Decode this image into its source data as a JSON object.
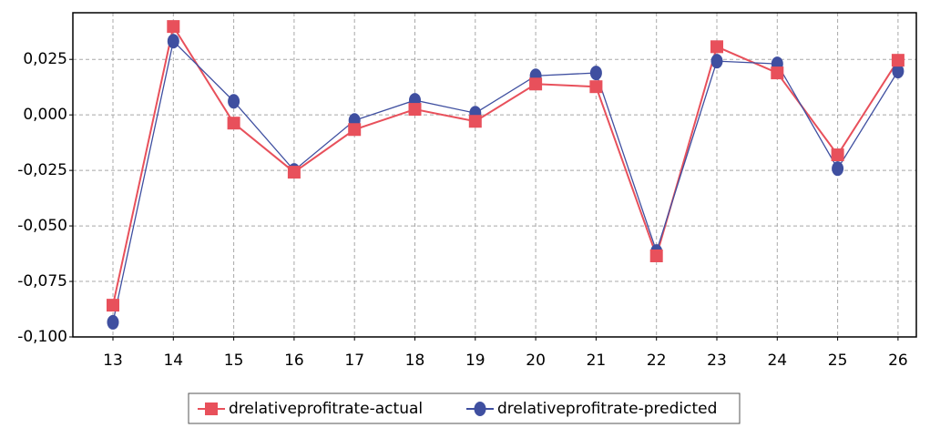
{
  "chart_data": {
    "type": "line",
    "categories": [
      "13",
      "14",
      "15",
      "16",
      "17",
      "18",
      "19",
      "20",
      "21",
      "22",
      "23",
      "24",
      "25",
      "26"
    ],
    "series": [
      {
        "name": "drelativeprofitrate-actual",
        "color": "#e8505b",
        "marker": "square",
        "values": [
          -0.0857,
          0.0398,
          -0.0037,
          -0.0258,
          -0.0066,
          0.0025,
          -0.0029,
          0.0139,
          0.0127,
          -0.0635,
          0.0307,
          0.0189,
          -0.018,
          0.0246
        ]
      },
      {
        "name": "drelativeprofitrate-predicted",
        "color": "#3f4fa0",
        "marker": "circle",
        "values": [
          -0.0934,
          0.0332,
          0.0061,
          -0.025,
          -0.0025,
          0.0066,
          0.0008,
          0.0176,
          0.0189,
          -0.0615,
          0.0242,
          0.023,
          -0.0242,
          0.0197
        ]
      }
    ],
    "ylim": [
      -0.1,
      0.046
    ],
    "yticks": [
      {
        "value": -0.1,
        "label": "-0,100"
      },
      {
        "value": -0.075,
        "label": "-0,075"
      },
      {
        "value": -0.05,
        "label": "-0,050"
      },
      {
        "value": -0.025,
        "label": "-0,025"
      },
      {
        "value": 0,
        "label": "0,000"
      },
      {
        "value": 0.025,
        "label": "0,025"
      }
    ],
    "grid": true,
    "legend": "bottom"
  }
}
